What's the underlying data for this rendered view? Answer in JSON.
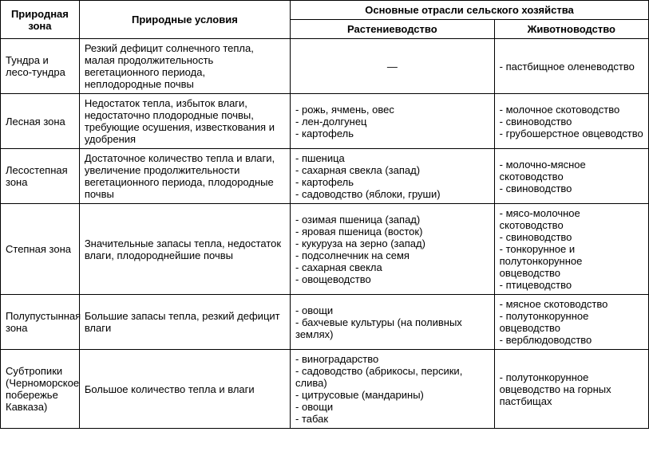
{
  "headers": {
    "zone": "Природная зона",
    "conditions": "Природные условия",
    "branches": "Основные отрасли сельского хозяйства",
    "plant": "Растениеводство",
    "animal": "Животноводство"
  },
  "rows": [
    {
      "zone": "Тундра и лесо-тундра",
      "conditions": "Резкий дефицит солнечного тепла, малая продолжительность вегетационного периода, неплодородные почвы",
      "plant_dash": "—",
      "animal": [
        "пастбищное оленеводство"
      ]
    },
    {
      "zone": "Лесная зона",
      "conditions": "Недостаток тепла, избыток влаги, недостаточно плодородные почвы, требующие осушения, известкования и удобрения",
      "plant": [
        "рожь, ячмень, овес",
        "лен-долгунец",
        "картофель"
      ],
      "animal": [
        "молочное скотоводство",
        "свиноводство",
        "грубошерстное овцеводство"
      ]
    },
    {
      "zone": "Лесостепная зона",
      "conditions": "Достаточное количество тепла и влаги, увеличение продолжительности вегетационного периода, плодородные почвы",
      "plant": [
        "пшеница",
        "сахарная свекла (запад)",
        "картофель",
        "садоводство (яблоки, груши)"
      ],
      "animal": [
        "молочно-мясное скотоводство",
        "свиноводство"
      ]
    },
    {
      "zone": "Степная зона",
      "conditions": "Значительные запасы тепла, недостаток влаги, плодороднейшие почвы",
      "plant": [
        "озимая пшеница (запад)",
        "яровая пшеница (восток)",
        "кукуруза на зерно (запад)",
        "подсолнечник на семя",
        "сахарная свекла",
        "овощеводство"
      ],
      "animal": [
        "мясо-молочное скотоводство",
        "свиноводство",
        "тонкорунное и полутонкорунное овцеводство",
        "птицеводство"
      ]
    },
    {
      "zone": "Полупустынная зона",
      "conditions": "Большие запасы тепла, резкий дефицит влаги",
      "plant": [
        "овощи",
        "бахчевые культуры (на поливных землях)"
      ],
      "animal": [
        "мясное скотоводство",
        "полутонкорунное овцеводство",
        "верблюдоводство"
      ]
    },
    {
      "zone": "Субтропики (Черноморское побережье Кавказа)",
      "conditions": "Большое количество тепла и влаги",
      "plant": [
        "виноградарство",
        "садоводство (абрикосы, персики, слива)",
        "цитрусовые (мандарины)",
        "овощи",
        "табак"
      ],
      "animal": [
        "полутонкорунное овцеводство на горных пастбищах"
      ]
    }
  ]
}
